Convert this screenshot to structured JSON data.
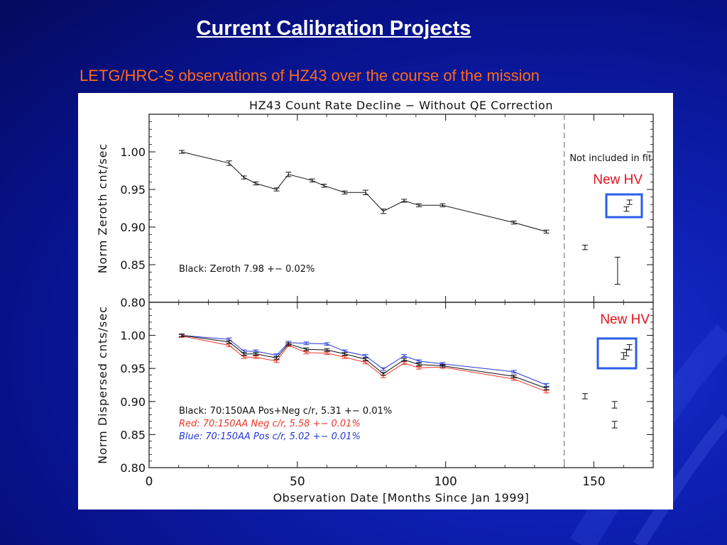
{
  "slide": {
    "title": "Current Calibration Projects",
    "subtitle": "LETG/HRC-S observations of HZ43 over the course of the mission"
  },
  "colors": {
    "background": "#0b1aa5",
    "title": "#ffffff",
    "subtitle": "#ff6a1a",
    "black_series": "#111111",
    "red_series": "#e8382c",
    "blue_series": "#2438d8",
    "highlight_box": "#2a5ee8",
    "annotation": "#e0141e"
  },
  "chart_data": [
    {
      "type": "line",
      "title": "HZ43 Count Rate Decline − Without QE Correction",
      "ylabel": "Norm Zeroth cnt/sec",
      "xlim": [
        0,
        170
      ],
      "ylim": [
        0.8,
        1.05
      ],
      "yticks": [
        0.8,
        0.85,
        0.9,
        0.95,
        1.0
      ],
      "ytick_labels": [
        "0.80",
        "0.85",
        "0.90",
        "0.95",
        "1.00"
      ],
      "cutoff_x": 140,
      "cutoff_label": "Not included in fit",
      "annotation_label": "New HV",
      "annotation_text": "Black: Zeroth 7.98 +− 0.02%",
      "series": [
        {
          "name": "Black",
          "color": "#111111",
          "x": [
            11,
            27,
            32,
            36,
            43,
            47,
            55,
            59,
            66,
            73,
            79,
            86,
            91,
            99,
            123,
            134
          ],
          "y": [
            1.0,
            0.985,
            0.966,
            0.958,
            0.95,
            0.97,
            0.962,
            0.955,
            0.946,
            0.946,
            0.921,
            0.935,
            0.929,
            0.929,
            0.906,
            0.894
          ],
          "err": [
            0.002,
            0.003,
            0.002,
            0.002,
            0.002,
            0.003,
            0.002,
            0.002,
            0.002,
            0.003,
            0.003,
            0.002,
            0.002,
            0.002,
            0.002,
            0.002
          ]
        }
      ],
      "excluded_points": [
        {
          "x": 147,
          "y": 0.873,
          "err": 0.003
        },
        {
          "x": 158,
          "y": 0.842,
          "err": 0.018
        },
        {
          "x": 161,
          "y": 0.924,
          "err": 0.003
        },
        {
          "x": 162,
          "y": 0.933,
          "err": 0.003
        }
      ]
    },
    {
      "type": "line",
      "ylabel": "Norm Dispersed cnts/sec",
      "xlabel": "Observation Date [Months Since Jan 1999]",
      "xlim": [
        0,
        170
      ],
      "ylim": [
        0.8,
        1.05
      ],
      "xticks": [
        0,
        50,
        100,
        150
      ],
      "xtick_labels": [
        "0",
        "50",
        "100",
        "150"
      ],
      "yticks": [
        0.8,
        0.85,
        0.9,
        0.95,
        1.0
      ],
      "ytick_labels": [
        "0.80",
        "0.85",
        "0.90",
        "0.95",
        "1.00"
      ],
      "cutoff_x": 140,
      "annotation_label": "New HV",
      "legend": [
        {
          "text": "Black: 70:150AA Pos+Neg c/r, 5.31 +− 0.01%",
          "color": "#111111",
          "italic": false
        },
        {
          "text": "Red:    70:150AA Neg c/r, 5.58 +− 0.01%",
          "color": "#e8382c",
          "italic": true
        },
        {
          "text": "Blue:   70:150AA Pos c/r, 5.02 +− 0.01%",
          "color": "#2438d8",
          "italic": true
        }
      ],
      "x": [
        11,
        27,
        32,
        36,
        43,
        47,
        53,
        60,
        66,
        73,
        79,
        86,
        91,
        99,
        123,
        134
      ],
      "series": [
        {
          "name": "Black",
          "color": "#111111",
          "y": [
            1.0,
            0.99,
            0.972,
            0.972,
            0.966,
            0.987,
            0.979,
            0.978,
            0.972,
            0.964,
            0.942,
            0.963,
            0.956,
            0.954,
            0.938,
            0.92
          ],
          "err": [
            0.002,
            0.002,
            0.002,
            0.002,
            0.002,
            0.002,
            0.002,
            0.002,
            0.002,
            0.002,
            0.002,
            0.002,
            0.002,
            0.002,
            0.002,
            0.002
          ]
        },
        {
          "name": "Red",
          "color": "#e8382c",
          "y": [
            0.999,
            0.985,
            0.967,
            0.967,
            0.961,
            0.985,
            0.974,
            0.973,
            0.967,
            0.959,
            0.938,
            0.958,
            0.951,
            0.952,
            0.934,
            0.915
          ],
          "err": [
            0.002,
            0.002,
            0.002,
            0.002,
            0.002,
            0.002,
            0.002,
            0.002,
            0.002,
            0.002,
            0.002,
            0.002,
            0.002,
            0.002,
            0.002,
            0.002
          ]
        },
        {
          "name": "Blue",
          "color": "#2438d8",
          "y": [
            1.0,
            0.994,
            0.976,
            0.976,
            0.97,
            0.989,
            0.988,
            0.987,
            0.976,
            0.969,
            0.949,
            0.969,
            0.961,
            0.957,
            0.945,
            0.925
          ],
          "err": [
            0.002,
            0.002,
            0.002,
            0.002,
            0.002,
            0.002,
            0.002,
            0.002,
            0.002,
            0.002,
            0.002,
            0.002,
            0.002,
            0.002,
            0.002,
            0.002
          ]
        }
      ],
      "excluded_points": [
        {
          "x": 147,
          "y": 0.908,
          "err": 0.004
        },
        {
          "x": 157,
          "y": 0.865,
          "err": 0.005
        },
        {
          "x": 157,
          "y": 0.895,
          "err": 0.005
        },
        {
          "x": 160,
          "y": 0.969,
          "err": 0.005
        },
        {
          "x": 161,
          "y": 0.974,
          "err": 0.005
        },
        {
          "x": 162,
          "y": 0.982,
          "err": 0.004
        }
      ]
    }
  ]
}
